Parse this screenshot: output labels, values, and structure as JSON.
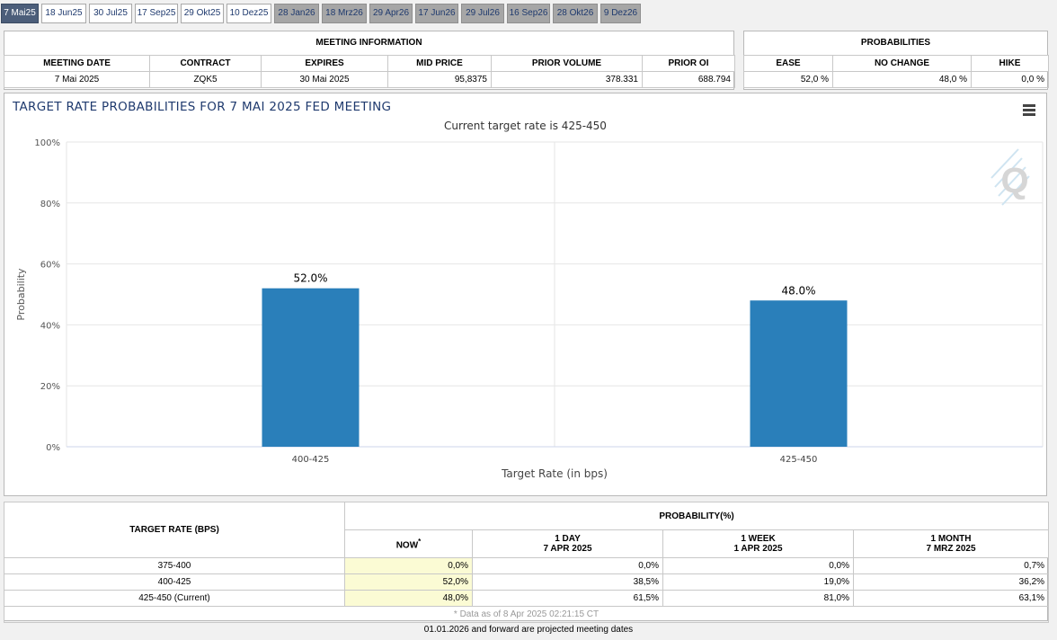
{
  "tabs": [
    {
      "label": "7 Mai25",
      "state": "active"
    },
    {
      "label": "18 Jun25",
      "state": "normal"
    },
    {
      "label": "30 Jul25",
      "state": "normal"
    },
    {
      "label": "17 Sep25",
      "state": "normal"
    },
    {
      "label": "29 Okt25",
      "state": "normal"
    },
    {
      "label": "10 Dez25",
      "state": "normal"
    },
    {
      "label": "28 Jan26",
      "state": "projected"
    },
    {
      "label": "18 Mrz26",
      "state": "projected"
    },
    {
      "label": "29 Apr26",
      "state": "projected"
    },
    {
      "label": "17 Jun26",
      "state": "projected"
    },
    {
      "label": "29 Jul26",
      "state": "projected"
    },
    {
      "label": "16 Sep26",
      "state": "projected"
    },
    {
      "label": "28 Okt26",
      "state": "projected"
    },
    {
      "label": "9 Dez26",
      "state": "projected"
    }
  ],
  "meeting_info": {
    "heading": "MEETING INFORMATION",
    "headers": [
      "MEETING DATE",
      "CONTRACT",
      "EXPIRES",
      "MID PRICE",
      "PRIOR VOLUME",
      "PRIOR OI"
    ],
    "row": [
      "7 Mai 2025",
      "ZQK5",
      "30 Mai 2025",
      "95,8375",
      "378.331",
      "688.794"
    ]
  },
  "probabilities": {
    "heading": "PROBABILITIES",
    "headers": [
      "EASE",
      "NO CHANGE",
      "HIKE"
    ],
    "row": [
      "52,0 %",
      "48,0 %",
      "0,0 %"
    ]
  },
  "chart": {
    "title": "TARGET RATE PROBABILITIES FOR 7 MAI 2025 FED MEETING",
    "subtitle": "Current target rate is 425-450",
    "watermark": "Q",
    "bar_color": "#2a7fba"
  },
  "chart_data": {
    "type": "bar",
    "categories": [
      "400-425",
      "425-450"
    ],
    "values": [
      52.0,
      48.0
    ],
    "data_labels": [
      "52.0%",
      "48.0%"
    ],
    "title": "TARGET RATE PROBABILITIES FOR 7 MAI 2025 FED MEETING",
    "subtitle": "Current target rate is 425-450",
    "xlabel": "Target Rate (in bps)",
    "ylabel": "Probability",
    "ylim": [
      0,
      100
    ],
    "yticks": [
      0,
      20,
      40,
      60,
      80,
      100
    ],
    "ytick_labels": [
      "0%",
      "20%",
      "40%",
      "60%",
      "80%",
      "100%"
    ],
    "grid": true,
    "legend": "none"
  },
  "prob_table": {
    "target_rate_header": "TARGET RATE (BPS)",
    "probability_header": "PROBABILITY(%)",
    "now_header": "NOW",
    "now_marker": "*",
    "columns": [
      {
        "line1": "1 DAY",
        "line2": "7 APR 2025"
      },
      {
        "line1": "1 WEEK",
        "line2": "1 APR 2025"
      },
      {
        "line1": "1 MONTH",
        "line2": "7 MRZ 2025"
      }
    ],
    "rows": [
      {
        "rate": "375-400",
        "now": "0,0%",
        "day": "0,0%",
        "week": "0,0%",
        "month": "0,7%"
      },
      {
        "rate": "400-425",
        "now": "52,0%",
        "day": "38,5%",
        "week": "19,0%",
        "month": "36,2%"
      },
      {
        "rate": "425-450 (Current)",
        "now": "48,0%",
        "day": "61,5%",
        "week": "81,0%",
        "month": "63,1%"
      }
    ],
    "data_note": "* Data as of 8 Apr 2025 02:21:15 CT"
  },
  "footer_note": "01.01.2026 and forward are projected meeting dates"
}
